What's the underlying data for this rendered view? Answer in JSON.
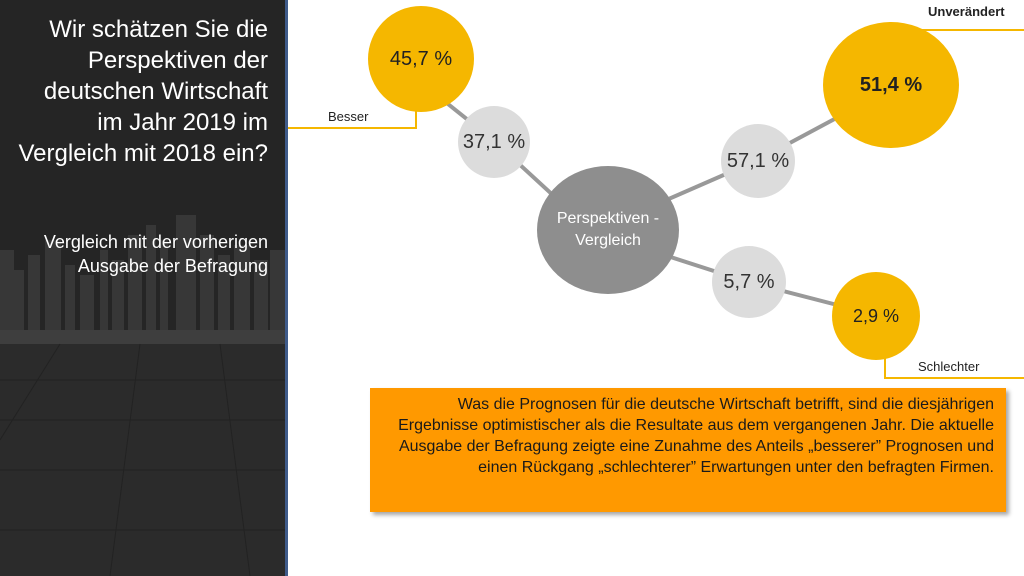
{
  "left_panel": {
    "title": "Wir schätzen Sie die Perspektiven der deutschen Wirtschaft im Jahr 2019 im Vergleich mit 2018 ein?",
    "subtitle": "Vergleich mit der vorherigen Ausgabe der Befragung"
  },
  "diagram": {
    "center": "Perspektiven - Vergleich",
    "besser": {
      "label": "Besser",
      "value_2019": "45,7 %",
      "value_2018": "37,1 %"
    },
    "unveraendert": {
      "label": "Unverändert",
      "value_2019": "51,4 %",
      "value_2018": "57,1 %"
    },
    "schlechter": {
      "label": "Schlechter",
      "value_2019": "2,9 %",
      "value_2018": "5,7 %"
    }
  },
  "note": "Was die Prognosen für die deutsche Wirtschaft betrifft, sind die diesjährigen Ergebnisse optimistischer als die Resultate aus dem vergangenen Jahr. Die aktuelle Ausgabe der Befragung zeigte eine Zunahme des Anteils „besserer” Prognosen und einen Rückgang „schlechterer” Erwartungen unter den befragten Firmen.",
  "colors": {
    "accent": "#f5b700",
    "note_bg": "#ff9900",
    "grey": "#dcdcdc",
    "center": "#8e8e8e"
  }
}
